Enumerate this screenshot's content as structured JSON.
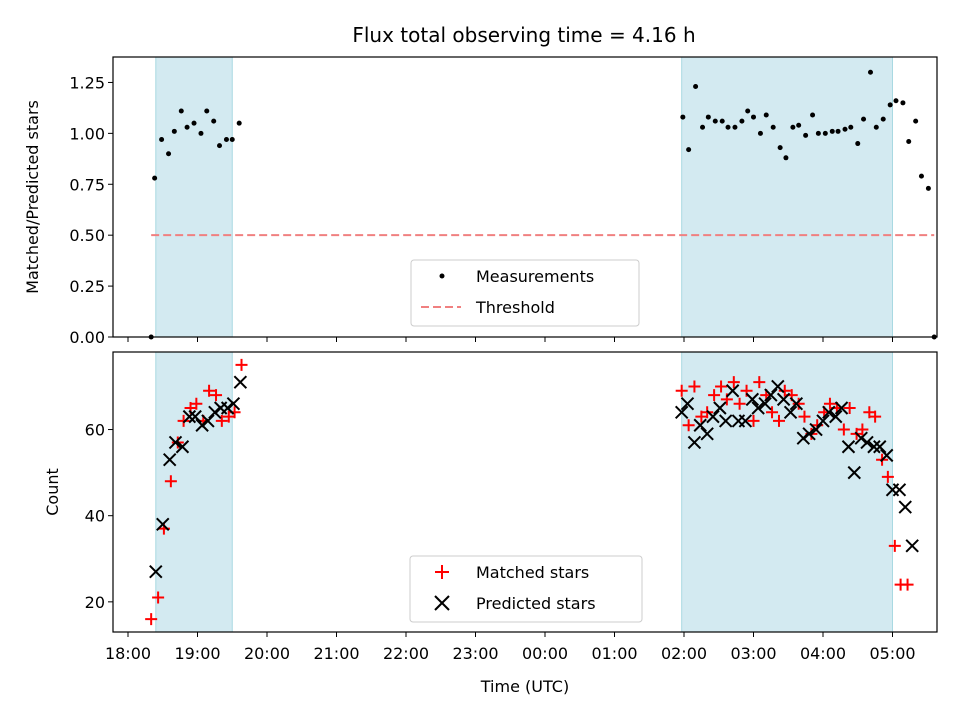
{
  "chart_data": {
    "type": "scatter",
    "title": "Flux total observing time = 4.16 h",
    "xlabel": "Time (UTC)",
    "x_ticks": [
      "18:00",
      "19:00",
      "20:00",
      "21:00",
      "22:00",
      "23:00",
      "00:00",
      "01:00",
      "02:00",
      "03:00",
      "04:00",
      "05:00"
    ],
    "colors": {
      "measurements": "#000000",
      "threshold": "#f08080",
      "matched": "#ff0000",
      "predicted": "#000000",
      "shade_fill": "#d3eaf1",
      "shade_edge": "#a9d9e2"
    },
    "panels": [
      {
        "ylabel": "Matched/Predicted stars",
        "ylim": [
          0,
          1.375
        ],
        "y_ticks": [
          "0.00",
          "0.25",
          "0.50",
          "0.75",
          "1.00",
          "1.25"
        ],
        "legend_position": "lower-center",
        "series": [
          {
            "name": "Measurements",
            "marker": "dot",
            "points": [
              [
                "18:20",
                0.0
              ],
              [
                "18:23",
                0.78
              ],
              [
                "18:29",
                0.97
              ],
              [
                "18:35",
                0.9
              ],
              [
                "18:40",
                1.01
              ],
              [
                "18:46",
                1.11
              ],
              [
                "18:51",
                1.03
              ],
              [
                "18:57",
                1.05
              ],
              [
                "19:03",
                1.0
              ],
              [
                "19:08",
                1.11
              ],
              [
                "19:14",
                1.06
              ],
              [
                "19:19",
                0.94
              ],
              [
                "19:25",
                0.97
              ],
              [
                "19:30",
                0.97
              ],
              [
                "19:36",
                1.05
              ],
              [
                "01:59",
                1.08
              ],
              [
                "02:04",
                0.92
              ],
              [
                "02:10",
                1.23
              ],
              [
                "02:16",
                1.03
              ],
              [
                "02:21",
                1.08
              ],
              [
                "02:27",
                1.06
              ],
              [
                "02:33",
                1.06
              ],
              [
                "02:38",
                1.03
              ],
              [
                "02:44",
                1.03
              ],
              [
                "02:50",
                1.06
              ],
              [
                "02:55",
                1.11
              ],
              [
                "03:00",
                1.08
              ],
              [
                "03:06",
                1.0
              ],
              [
                "03:11",
                1.09
              ],
              [
                "03:17",
                1.03
              ],
              [
                "03:23",
                0.93
              ],
              [
                "03:28",
                0.88
              ],
              [
                "03:34",
                1.03
              ],
              [
                "03:39",
                1.04
              ],
              [
                "03:45",
                0.99
              ],
              [
                "03:51",
                1.09
              ],
              [
                "03:56",
                1.0
              ],
              [
                "04:02",
                1.0
              ],
              [
                "04:08",
                1.01
              ],
              [
                "04:13",
                1.01
              ],
              [
                "04:19",
                1.02
              ],
              [
                "04:24",
                1.03
              ],
              [
                "04:30",
                0.95
              ],
              [
                "04:35",
                1.07
              ],
              [
                "04:41",
                1.3
              ],
              [
                "04:46",
                1.03
              ],
              [
                "04:52",
                1.07
              ],
              [
                "04:58",
                1.14
              ],
              [
                "05:03",
                1.16
              ],
              [
                "05:09",
                1.15
              ],
              [
                "05:14",
                0.96
              ],
              [
                "05:20",
                1.06
              ],
              [
                "05:25",
                0.79
              ],
              [
                "05:31",
                0.73
              ],
              [
                "05:36",
                0.0
              ]
            ]
          },
          {
            "name": "Threshold",
            "marker": "dashed-line",
            "points": [
              [
                "18:20",
                0.5
              ],
              [
                "05:36",
                0.5
              ]
            ]
          }
        ]
      },
      {
        "ylabel": "Count",
        "ylim": [
          13,
          78
        ],
        "y_ticks": [
          "20",
          "40",
          "60"
        ],
        "legend_position": "lower-center",
        "series": [
          {
            "name": "Matched stars",
            "marker": "plus",
            "points": [
              [
                "18:20",
                16
              ],
              [
                "18:26",
                21
              ],
              [
                "18:31",
                37
              ],
              [
                "18:37",
                48
              ],
              [
                "18:43",
                57
              ],
              [
                "18:48",
                62
              ],
              [
                "18:54",
                65
              ],
              [
                "18:59",
                66
              ],
              [
                "19:05",
                62
              ],
              [
                "19:10",
                69
              ],
              [
                "19:16",
                68
              ],
              [
                "19:21",
                62
              ],
              [
                "19:27",
                63
              ],
              [
                "19:32",
                64
              ],
              [
                "19:38",
                75
              ],
              [
                "01:58",
                69
              ],
              [
                "02:04",
                61
              ],
              [
                "02:09",
                70
              ],
              [
                "02:15",
                63
              ],
              [
                "02:20",
                64
              ],
              [
                "02:26",
                68
              ],
              [
                "02:32",
                70
              ],
              [
                "02:37",
                67
              ],
              [
                "02:43",
                71
              ],
              [
                "02:48",
                66
              ],
              [
                "02:54",
                69
              ],
              [
                "03:00",
                62
              ],
              [
                "03:05",
                71
              ],
              [
                "03:11",
                68
              ],
              [
                "03:16",
                64
              ],
              [
                "03:22",
                62
              ],
              [
                "03:27",
                69
              ],
              [
                "03:33",
                68
              ],
              [
                "03:39",
                66
              ],
              [
                "03:44",
                63
              ],
              [
                "03:50",
                59
              ],
              [
                "03:55",
                61
              ],
              [
                "04:01",
                64
              ],
              [
                "04:06",
                66
              ],
              [
                "04:12",
                65
              ],
              [
                "04:18",
                60
              ],
              [
                "04:23",
                65
              ],
              [
                "04:29",
                59
              ],
              [
                "04:34",
                60
              ],
              [
                "04:40",
                64
              ],
              [
                "04:45",
                63
              ],
              [
                "04:51",
                53
              ],
              [
                "04:56",
                49
              ],
              [
                "05:02",
                33
              ],
              [
                "05:07",
                24
              ],
              [
                "05:13",
                24
              ]
            ]
          },
          {
            "name": "Predicted stars",
            "marker": "x",
            "points": [
              [
                "18:24",
                27
              ],
              [
                "18:30",
                38
              ],
              [
                "18:36",
                53
              ],
              [
                "18:41",
                57
              ],
              [
                "18:47",
                56
              ],
              [
                "18:53",
                63
              ],
              [
                "18:58",
                63
              ],
              [
                "19:04",
                61
              ],
              [
                "19:09",
                62
              ],
              [
                "19:15",
                64
              ],
              [
                "19:20",
                65
              ],
              [
                "19:26",
                65
              ],
              [
                "19:31",
                66
              ],
              [
                "19:37",
                71
              ],
              [
                "01:58",
                64
              ],
              [
                "02:03",
                66
              ],
              [
                "02:09",
                57
              ],
              [
                "02:14",
                61
              ],
              [
                "02:20",
                59
              ],
              [
                "02:25",
                63
              ],
              [
                "02:31",
                65
              ],
              [
                "02:36",
                62
              ],
              [
                "02:42",
                69
              ],
              [
                "02:47",
                62
              ],
              [
                "02:53",
                62
              ],
              [
                "02:59",
                67
              ],
              [
                "03:04",
                65
              ],
              [
                "03:10",
                66
              ],
              [
                "03:15",
                68
              ],
              [
                "03:21",
                70
              ],
              [
                "03:26",
                67
              ],
              [
                "03:32",
                64
              ],
              [
                "03:37",
                66
              ],
              [
                "03:43",
                58
              ],
              [
                "03:48",
                59
              ],
              [
                "03:54",
                60
              ],
              [
                "04:00",
                62
              ],
              [
                "04:05",
                64
              ],
              [
                "04:11",
                63
              ],
              [
                "04:16",
                65
              ],
              [
                "04:22",
                56
              ],
              [
                "04:27",
                50
              ],
              [
                "04:33",
                58
              ],
              [
                "04:38",
                57
              ],
              [
                "04:44",
                56
              ],
              [
                "04:49",
                56
              ],
              [
                "04:55",
                54
              ],
              [
                "05:00",
                46
              ],
              [
                "05:06",
                46
              ],
              [
                "05:11",
                42
              ],
              [
                "05:17",
                33
              ]
            ]
          }
        ]
      }
    ],
    "shaded_intervals": [
      [
        "18:24",
        "19:30"
      ],
      [
        "01:58",
        "05:00"
      ]
    ]
  }
}
